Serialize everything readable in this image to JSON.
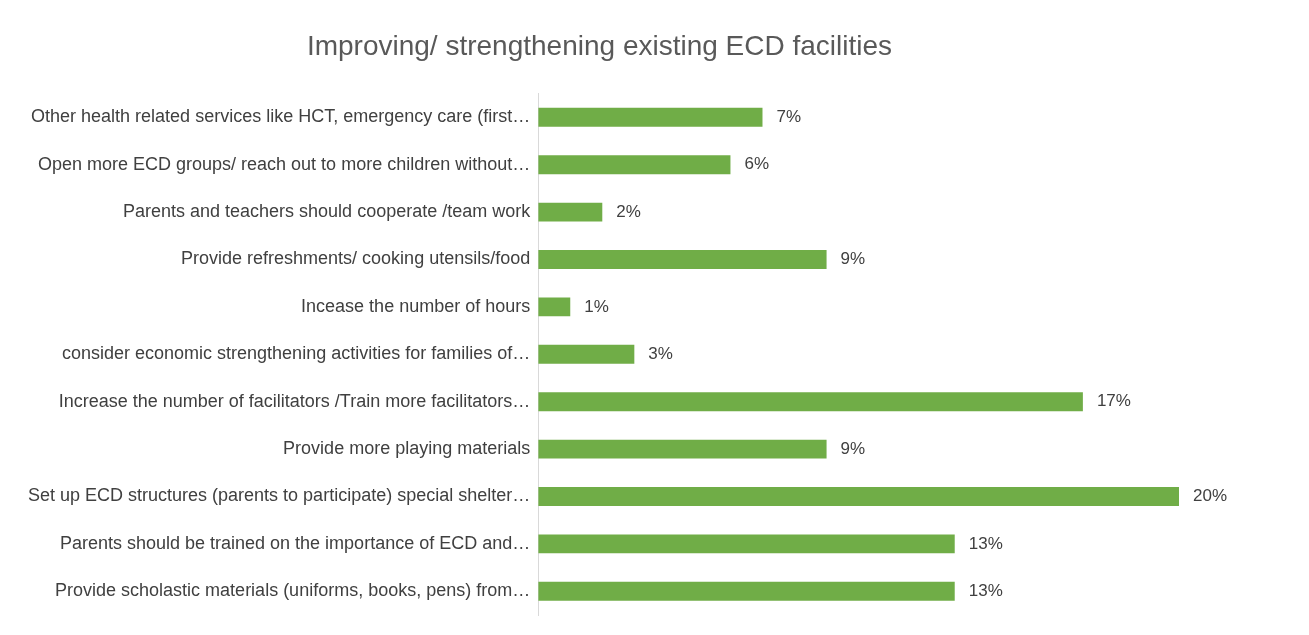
{
  "chart_data": {
    "type": "bar",
    "orientation": "horizontal",
    "title": "Improving/ strengthening existing ECD facilities",
    "categories": [
      "Other health related services like HCT, emergency care (first…",
      "Open more ECD groups/ reach out to more children without…",
      "Parents and teachers should cooperate /team work",
      "Provide refreshments/ cooking utensils/food",
      "Incease the number of hours",
      "consider economic strengthening activities for families of…",
      "Increase the number of facilitators /Train more facilitators…",
      "Provide more playing materials",
      "Set up ECD structures (parents to participate) special shelter…",
      "Parents should be trained on the importance of ECD and…",
      "Provide scholastic materials (uniforms, books, pens) from…"
    ],
    "values": [
      7,
      6,
      2,
      9,
      1,
      3,
      17,
      9,
      20,
      13,
      13
    ],
    "value_labels": [
      "7%",
      "6%",
      "2%",
      "9%",
      "1%",
      "3%",
      "17%",
      "9%",
      "20%",
      "13%",
      "13%"
    ],
    "color": "#70ad47",
    "legend": false,
    "tick_labels": "y"
  }
}
